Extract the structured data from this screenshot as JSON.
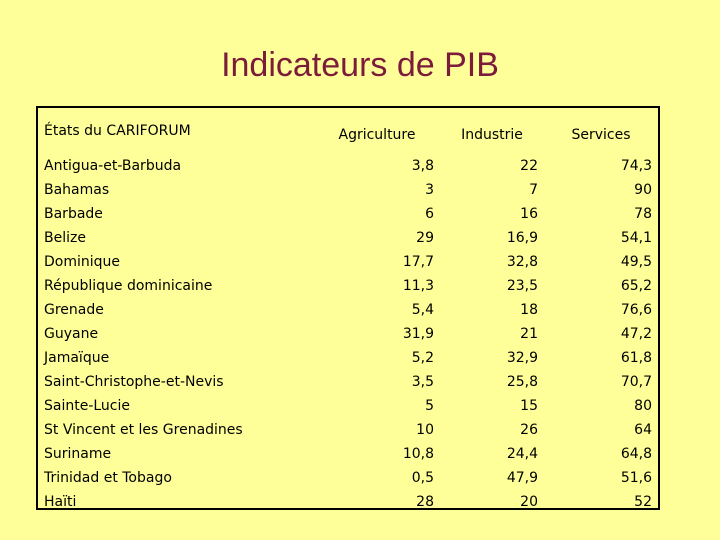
{
  "title": "Indicateurs de PIB",
  "table": {
    "headers": [
      "États du CARIFORUM",
      "Agriculture",
      "Industrie",
      "Services"
    ],
    "rows": [
      [
        "Antigua-et-Barbuda",
        "3,8",
        "22",
        "74,3"
      ],
      [
        "Bahamas",
        "3",
        "7",
        "90"
      ],
      [
        "Barbade",
        "6",
        "16",
        "78"
      ],
      [
        "Belize",
        "29",
        "16,9",
        "54,1"
      ],
      [
        "Dominique",
        "17,7",
        "32,8",
        "49,5"
      ],
      [
        "République dominicaine",
        "11,3",
        "23,5",
        "65,2"
      ],
      [
        "Grenade",
        "5,4",
        "18",
        "76,6"
      ],
      [
        "Guyane",
        "31,9",
        "21",
        "47,2"
      ],
      [
        "Jamaïque",
        "5,2",
        "32,9",
        "61,8"
      ],
      [
        "Saint-Christophe-et-Nevis",
        "3,5",
        "25,8",
        "70,7"
      ],
      [
        "Sainte-Lucie",
        "5",
        "15",
        "80"
      ],
      [
        "St Vincent et les Grenadines",
        "10",
        "26",
        "64"
      ],
      [
        "Suriname",
        "10,8",
        "24,4",
        "64,8"
      ],
      [
        "Trinidad et Tobago",
        "0,5",
        "47,9",
        "51,6"
      ],
      [
        "Haïti",
        "28",
        "20",
        "52"
      ]
    ]
  }
}
